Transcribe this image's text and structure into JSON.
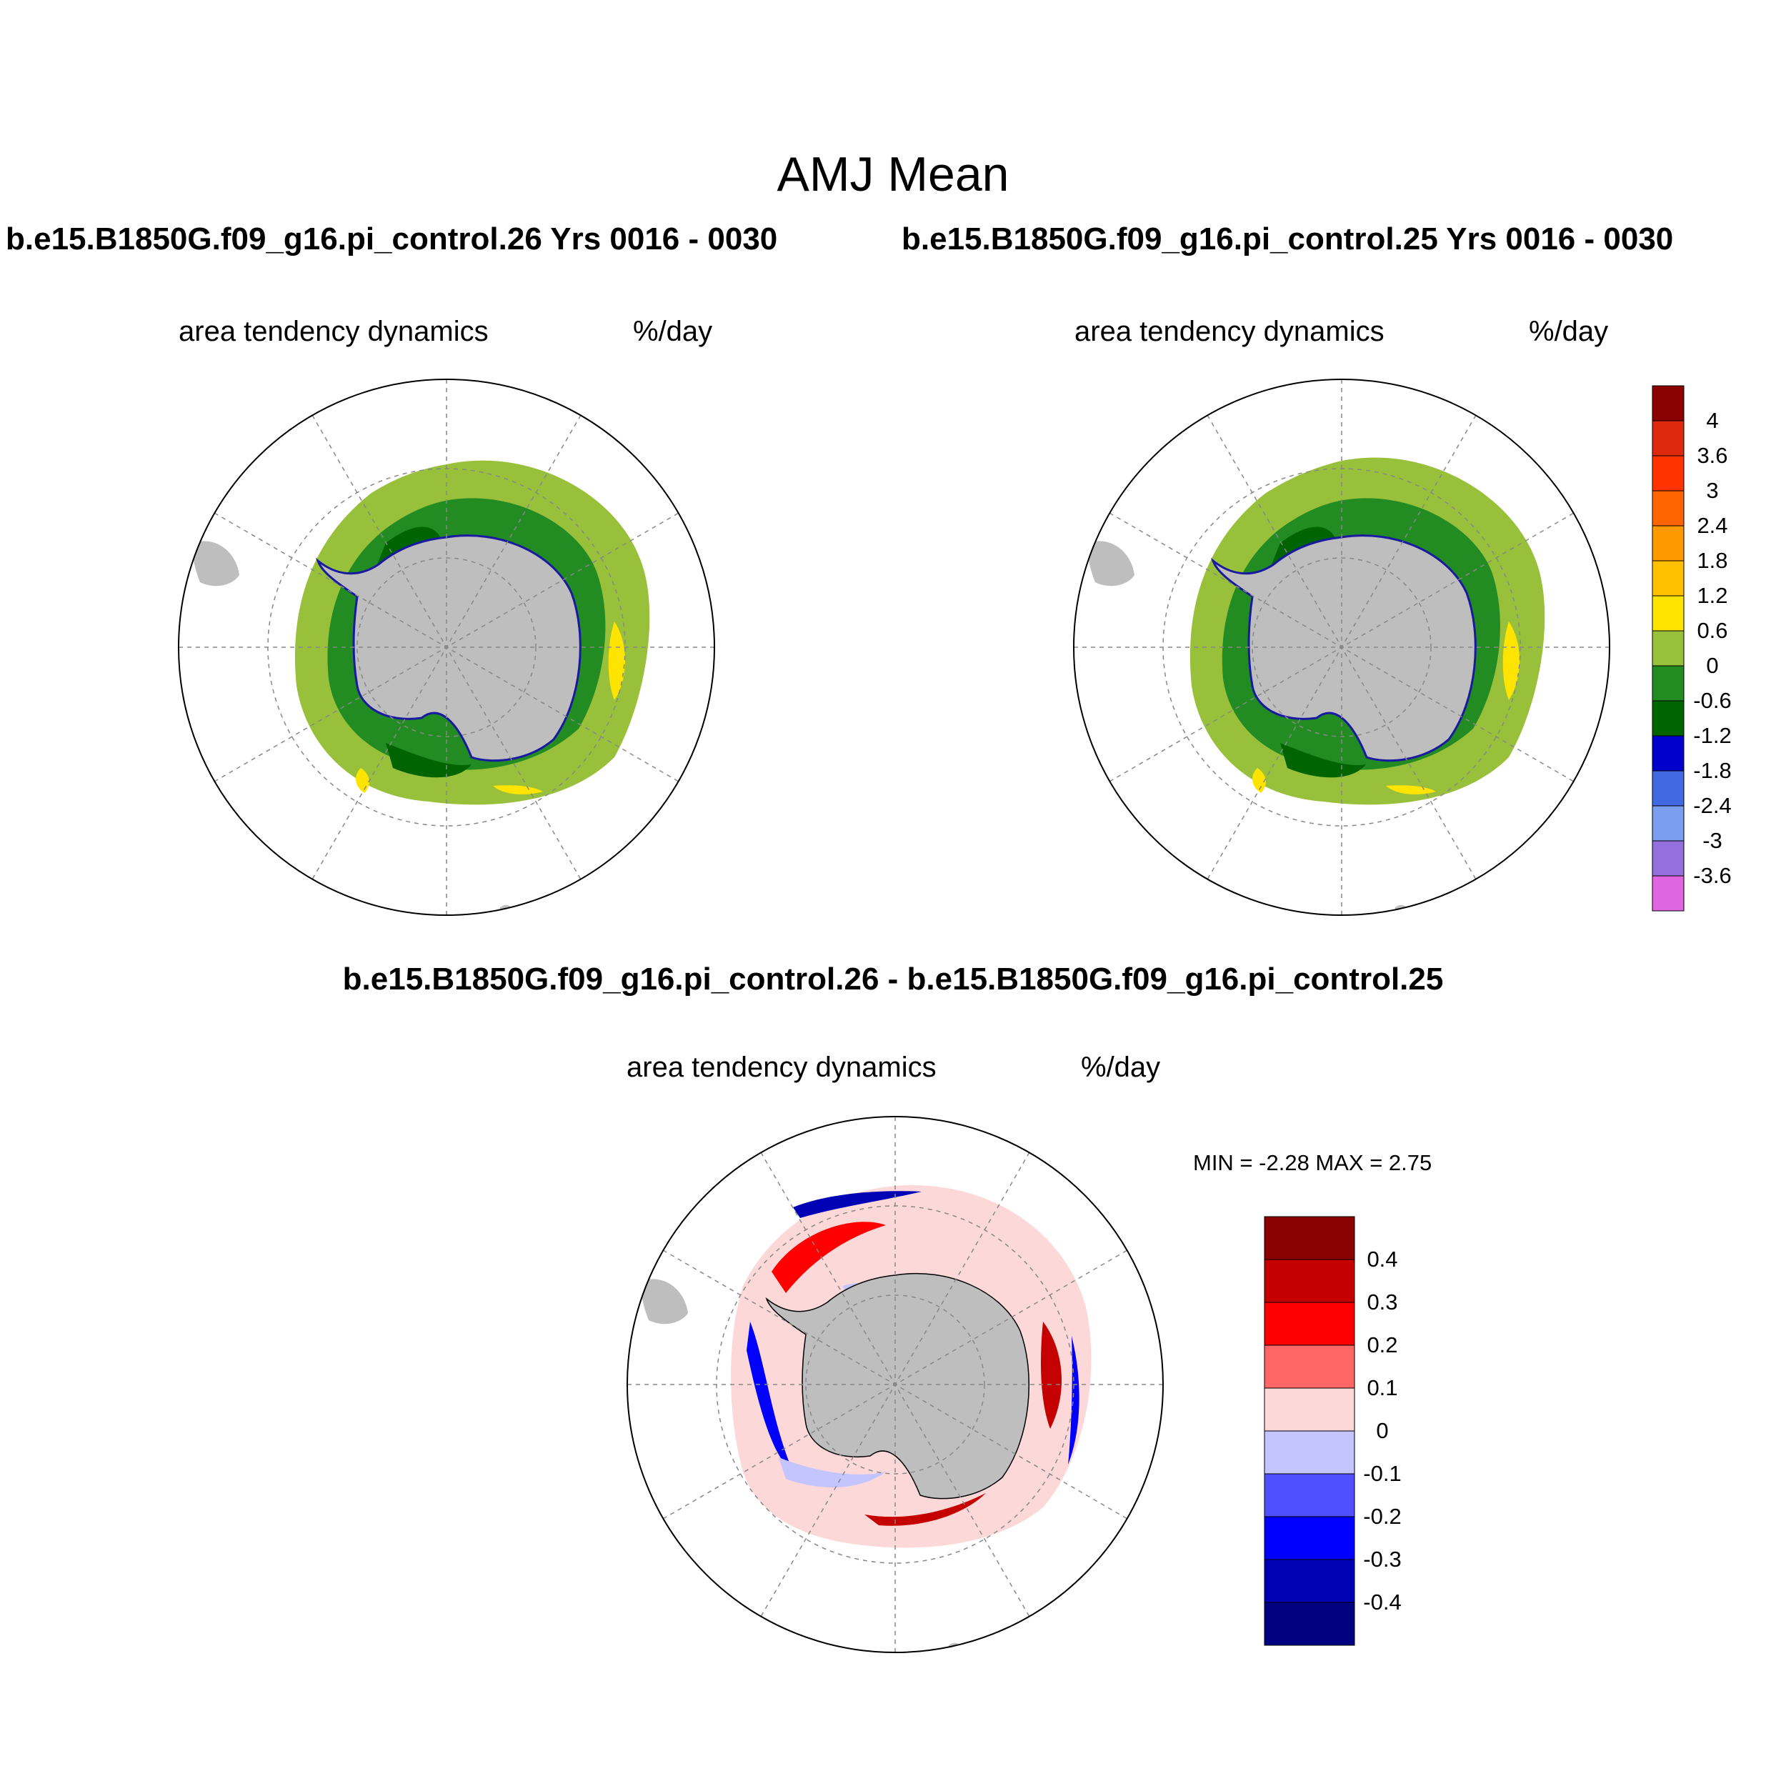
{
  "title": "AMJ Mean",
  "panels": {
    "top_left": {
      "case_title": "b.e15.B1850G.f09_g16.pi_control.26  Yrs 0016 - 0030",
      "variable": "area tendency dynamics",
      "units": "%/day"
    },
    "top_right": {
      "case_title": "b.e15.B1850G.f09_g16.pi_control.25  Yrs 0016 - 0030",
      "variable": "area tendency dynamics",
      "units": "%/day"
    },
    "diff": {
      "case_title": "b.e15.B1850G.f09_g16.pi_control.26 - b.e15.B1850G.f09_g16.pi_control.25",
      "variable": "area tendency dynamics",
      "units": "%/day",
      "stats": "MIN =  -2.28 MAX =   2.75"
    }
  },
  "colorbar_main": {
    "labels": [
      "4",
      "3.6",
      "3",
      "2.4",
      "1.8",
      "1.2",
      "0.6",
      "0",
      "-0.6",
      "-1.2",
      "-1.8",
      "-2.4",
      "-3",
      "-3.6"
    ],
    "colors": [
      "#8b0000",
      "#dd2a0e",
      "#ff3300",
      "#ff6600",
      "#ff9900",
      "#ffc000",
      "#ffe400",
      "#98c03a",
      "#228b22",
      "#006400",
      "#0000cd",
      "#4169e1",
      "#7a9ef0",
      "#9370db",
      "#e066e0"
    ]
  },
  "colorbar_diff": {
    "labels": [
      "0.4",
      "0.3",
      "0.2",
      "0.1",
      "0",
      "-0.1",
      "-0.2",
      "-0.3",
      "-0.4"
    ],
    "colors": [
      "#8b0000",
      "#c40000",
      "#ff0000",
      "#ff6666",
      "#fcd8d8",
      "#c4c4ff",
      "#5050ff",
      "#0000ff",
      "#0000b4",
      "#000080"
    ]
  },
  "map_colors": {
    "land": "#bebebe",
    "grid": "#888888"
  }
}
